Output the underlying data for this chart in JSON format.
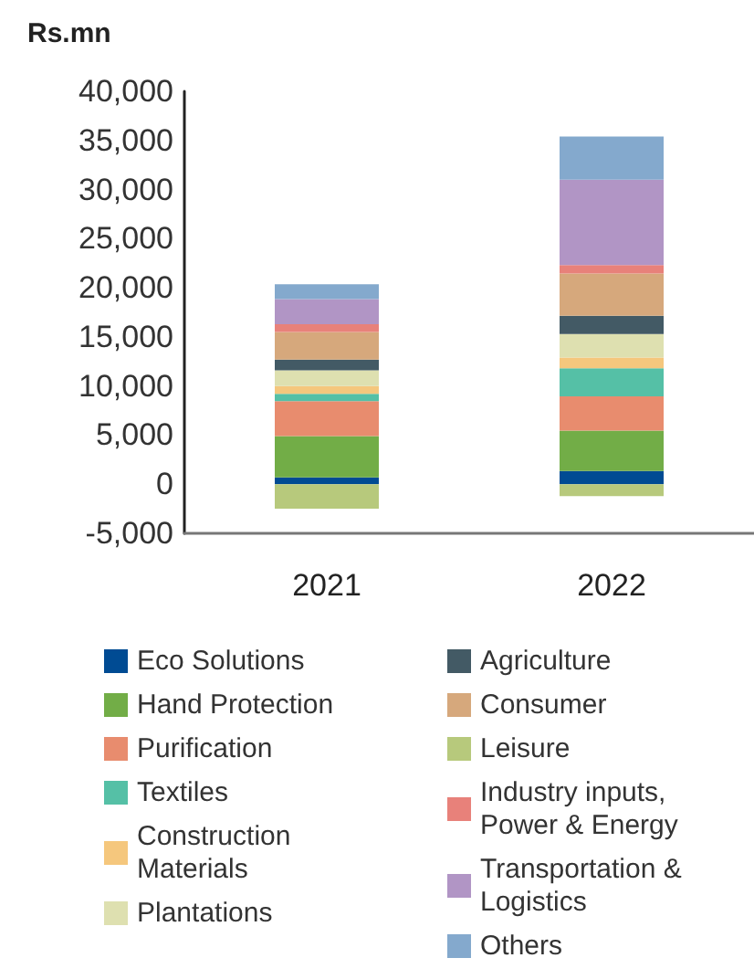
{
  "chart_data": {
    "type": "bar",
    "stacked": true,
    "ylabel": "Rs.mn",
    "categories": [
      "2021",
      "2022"
    ],
    "ylim": [
      -5000,
      40000
    ],
    "yticks": [
      {
        "value": -5000,
        "label": "-5,000"
      },
      0,
      {
        "value": 5000,
        "label": "5,000"
      },
      {
        "value": 10000,
        "label": "10,000"
      },
      {
        "value": 15000,
        "label": "15,000"
      },
      {
        "value": 20000,
        "label": "20,000"
      },
      {
        "value": 25000,
        "label": "25,000"
      },
      {
        "value": 30000,
        "label": "30,000"
      },
      {
        "value": 35000,
        "label": "35,000"
      },
      {
        "value": 40000,
        "label": "40,000"
      }
    ],
    "grid": false,
    "legend": "bottom",
    "series": [
      {
        "name": "Eco Solutions",
        "color": "#004b93",
        "values": [
          700,
          1350
        ]
      },
      {
        "name": "Hand Protection",
        "color": "#72ad47",
        "values": [
          4200,
          4100
        ]
      },
      {
        "name": "Purification",
        "color": "#e88c6e",
        "values": [
          3550,
          3500
        ]
      },
      {
        "name": "Textiles",
        "color": "#55c0a6",
        "values": [
          750,
          2850
        ]
      },
      {
        "name": "Construction Materials",
        "color": "#f5c77d",
        "values": [
          800,
          1100
        ]
      },
      {
        "name": "Plantations",
        "color": "#dee0b0",
        "values": [
          1600,
          2400
        ]
      },
      {
        "name": "Agriculture",
        "color": "#435a65",
        "values": [
          1100,
          1850
        ]
      },
      {
        "name": "Consumer",
        "color": "#d6a87c",
        "values": [
          2800,
          4300
        ]
      },
      {
        "name": "Leisure",
        "color": "#b7c97c",
        "values": [
          -2500,
          -1200
        ]
      },
      {
        "name": "Industry inputs, Power & Energy",
        "color": "#e8817a",
        "values": [
          800,
          850
        ]
      },
      {
        "name": "Transportation & Logistics",
        "color": "#b195c5",
        "values": [
          2550,
          8700
        ]
      },
      {
        "name": "Others",
        "color": "#84a9cd",
        "values": [
          1500,
          4400
        ]
      }
    ]
  }
}
